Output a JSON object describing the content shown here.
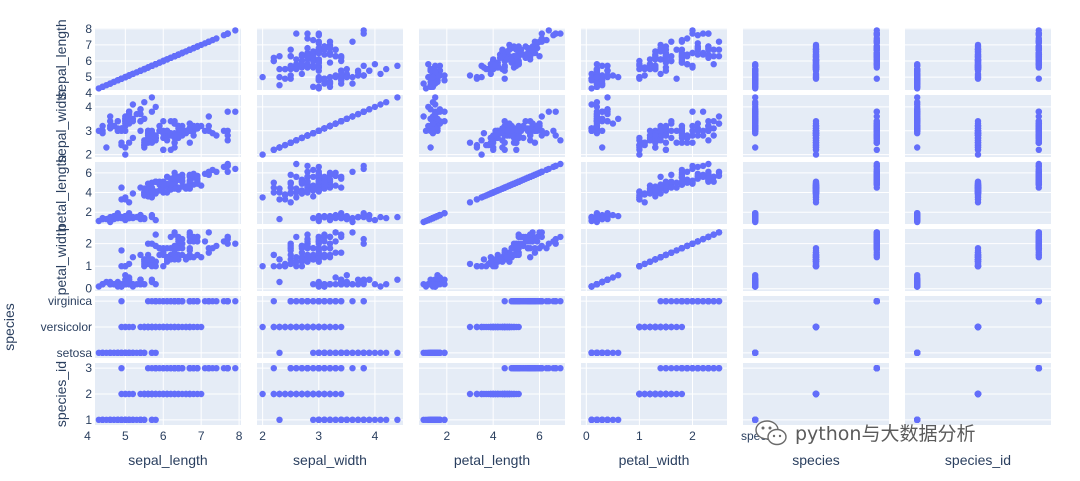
{
  "chart_data": {
    "type": "scatter",
    "subtype": "scatter-matrix",
    "title": "",
    "dimensions": [
      "sepal_length",
      "sepal_width",
      "petal_length",
      "petal_width",
      "species",
      "species_id"
    ],
    "axes": {
      "sepal_length": {
        "range": [
          4.2,
          8.05
        ],
        "ticks": [
          4,
          5,
          6,
          7,
          8
        ],
        "x_ticks": [
          4,
          5,
          6,
          7,
          8
        ],
        "y_ticks": [
          4,
          5,
          6,
          7,
          8
        ]
      },
      "sepal_width": {
        "range": [
          1.9,
          4.5
        ],
        "x_ticks": [
          2,
          3,
          4
        ],
        "y_ticks": [
          2,
          3,
          4
        ]
      },
      "petal_length": {
        "range": [
          0.8,
          7.1
        ],
        "x_ticks": [
          2,
          4,
          6
        ],
        "y_ticks": [
          2,
          4,
          6
        ]
      },
      "petal_width": {
        "range": [
          -0.1,
          2.65
        ],
        "x_ticks": [
          0,
          1,
          2
        ],
        "y_ticks": [
          0,
          1,
          2
        ]
      },
      "species": {
        "categorical": true,
        "categories": [
          "setosa",
          "versicolor",
          "virginica"
        ],
        "range": [
          -0.2,
          2.2
        ],
        "y_ticks": [
          "virginica",
          "versicolor",
          "setosa"
        ]
      },
      "species_id": {
        "range": [
          0.8,
          3.2
        ],
        "y_ticks": [
          1,
          2,
          3
        ]
      }
    },
    "marker_color": "#636efa",
    "plot_bgcolor": "#e5ecf6",
    "grid": true,
    "legend": "none",
    "source_sample_rows": [
      [
        5.1,
        3.5,
        1.4,
        0.2,
        "setosa",
        1
      ],
      [
        4.9,
        3.0,
        1.4,
        0.2,
        "setosa",
        1
      ],
      [
        4.7,
        3.2,
        1.3,
        0.2,
        "setosa",
        1
      ],
      [
        4.6,
        3.1,
        1.5,
        0.2,
        "setosa",
        1
      ],
      [
        5.0,
        3.6,
        1.4,
        0.2,
        "setosa",
        1
      ],
      [
        5.4,
        3.9,
        1.7,
        0.4,
        "setosa",
        1
      ],
      [
        4.6,
        3.4,
        1.4,
        0.3,
        "setosa",
        1
      ],
      [
        5.0,
        3.4,
        1.5,
        0.2,
        "setosa",
        1
      ],
      [
        4.4,
        2.9,
        1.4,
        0.2,
        "setosa",
        1
      ],
      [
        4.9,
        3.1,
        1.5,
        0.1,
        "setosa",
        1
      ],
      [
        5.4,
        3.7,
        1.5,
        0.2,
        "setosa",
        1
      ],
      [
        4.8,
        3.4,
        1.6,
        0.2,
        "setosa",
        1
      ],
      [
        4.8,
        3.0,
        1.4,
        0.1,
        "setosa",
        1
      ],
      [
        4.3,
        3.0,
        1.1,
        0.1,
        "setosa",
        1
      ],
      [
        5.8,
        4.0,
        1.2,
        0.2,
        "setosa",
        1
      ],
      [
        5.7,
        4.4,
        1.5,
        0.4,
        "setosa",
        1
      ],
      [
        5.4,
        3.9,
        1.3,
        0.4,
        "setosa",
        1
      ],
      [
        5.1,
        3.5,
        1.4,
        0.3,
        "setosa",
        1
      ],
      [
        5.7,
        3.8,
        1.7,
        0.3,
        "setosa",
        1
      ],
      [
        5.1,
        3.8,
        1.5,
        0.3,
        "setosa",
        1
      ],
      [
        5.4,
        3.4,
        1.7,
        0.2,
        "setosa",
        1
      ],
      [
        5.1,
        3.7,
        1.5,
        0.4,
        "setosa",
        1
      ],
      [
        4.6,
        3.6,
        1.0,
        0.2,
        "setosa",
        1
      ],
      [
        5.1,
        3.3,
        1.7,
        0.5,
        "setosa",
        1
      ],
      [
        4.8,
        3.4,
        1.9,
        0.2,
        "setosa",
        1
      ],
      [
        5.0,
        3.0,
        1.6,
        0.2,
        "setosa",
        1
      ],
      [
        5.0,
        3.4,
        1.6,
        0.4,
        "setosa",
        1
      ],
      [
        5.2,
        3.5,
        1.5,
        0.2,
        "setosa",
        1
      ],
      [
        5.2,
        3.4,
        1.4,
        0.2,
        "setosa",
        1
      ],
      [
        4.7,
        3.2,
        1.6,
        0.2,
        "setosa",
        1
      ],
      [
        4.8,
        3.1,
        1.6,
        0.2,
        "setosa",
        1
      ],
      [
        5.4,
        3.4,
        1.5,
        0.4,
        "setosa",
        1
      ],
      [
        5.2,
        4.1,
        1.5,
        0.1,
        "setosa",
        1
      ],
      [
        5.5,
        4.2,
        1.4,
        0.2,
        "setosa",
        1
      ],
      [
        4.9,
        3.1,
        1.5,
        0.1,
        "setosa",
        1
      ],
      [
        5.0,
        3.2,
        1.2,
        0.2,
        "setosa",
        1
      ],
      [
        5.5,
        3.5,
        1.3,
        0.2,
        "setosa",
        1
      ],
      [
        4.9,
        3.1,
        1.5,
        0.1,
        "setosa",
        1
      ],
      [
        4.4,
        3.0,
        1.3,
        0.2,
        "setosa",
        1
      ],
      [
        5.1,
        3.4,
        1.5,
        0.2,
        "setosa",
        1
      ],
      [
        5.0,
        3.5,
        1.3,
        0.3,
        "setosa",
        1
      ],
      [
        4.5,
        2.3,
        1.3,
        0.3,
        "setosa",
        1
      ],
      [
        4.4,
        3.2,
        1.3,
        0.2,
        "setosa",
        1
      ],
      [
        5.0,
        3.5,
        1.6,
        0.6,
        "setosa",
        1
      ],
      [
        5.1,
        3.8,
        1.9,
        0.4,
        "setosa",
        1
      ],
      [
        4.8,
        3.0,
        1.4,
        0.3,
        "setosa",
        1
      ],
      [
        5.1,
        3.8,
        1.6,
        0.2,
        "setosa",
        1
      ],
      [
        4.6,
        3.2,
        1.4,
        0.2,
        "setosa",
        1
      ],
      [
        5.3,
        3.7,
        1.5,
        0.2,
        "setosa",
        1
      ],
      [
        5.0,
        3.3,
        1.4,
        0.2,
        "setosa",
        1
      ],
      [
        7.0,
        3.2,
        4.7,
        1.4,
        "versicolor",
        2
      ],
      [
        6.4,
        3.2,
        4.5,
        1.5,
        "versicolor",
        2
      ],
      [
        6.9,
        3.1,
        4.9,
        1.5,
        "versicolor",
        2
      ],
      [
        5.5,
        2.3,
        4.0,
        1.3,
        "versicolor",
        2
      ],
      [
        6.5,
        2.8,
        4.6,
        1.5,
        "versicolor",
        2
      ],
      [
        5.7,
        2.8,
        4.5,
        1.3,
        "versicolor",
        2
      ],
      [
        6.3,
        3.3,
        4.7,
        1.6,
        "versicolor",
        2
      ],
      [
        4.9,
        2.4,
        3.3,
        1.0,
        "versicolor",
        2
      ],
      [
        6.6,
        2.9,
        4.6,
        1.3,
        "versicolor",
        2
      ],
      [
        5.2,
        2.7,
        3.9,
        1.4,
        "versicolor",
        2
      ],
      [
        5.0,
        2.0,
        3.5,
        1.0,
        "versicolor",
        2
      ],
      [
        5.9,
        3.0,
        4.2,
        1.5,
        "versicolor",
        2
      ],
      [
        6.0,
        2.2,
        4.0,
        1.0,
        "versicolor",
        2
      ],
      [
        6.1,
        2.9,
        4.7,
        1.4,
        "versicolor",
        2
      ],
      [
        5.6,
        2.9,
        3.6,
        1.3,
        "versicolor",
        2
      ],
      [
        6.7,
        3.1,
        4.4,
        1.4,
        "versicolor",
        2
      ],
      [
        5.6,
        3.0,
        4.5,
        1.5,
        "versicolor",
        2
      ],
      [
        5.8,
        2.7,
        4.1,
        1.0,
        "versicolor",
        2
      ],
      [
        6.2,
        2.2,
        4.5,
        1.5,
        "versicolor",
        2
      ],
      [
        5.6,
        2.5,
        3.9,
        1.1,
        "versicolor",
        2
      ],
      [
        5.9,
        3.2,
        4.8,
        1.8,
        "versicolor",
        2
      ],
      [
        6.1,
        2.8,
        4.0,
        1.3,
        "versicolor",
        2
      ],
      [
        6.3,
        2.5,
        4.9,
        1.5,
        "versicolor",
        2
      ],
      [
        6.1,
        2.8,
        4.7,
        1.2,
        "versicolor",
        2
      ],
      [
        6.4,
        2.9,
        4.3,
        1.3,
        "versicolor",
        2
      ],
      [
        6.6,
        3.0,
        4.4,
        1.4,
        "versicolor",
        2
      ],
      [
        6.8,
        2.8,
        4.8,
        1.4,
        "versicolor",
        2
      ],
      [
        6.7,
        3.0,
        5.0,
        1.7,
        "versicolor",
        2
      ],
      [
        6.0,
        2.9,
        4.5,
        1.5,
        "versicolor",
        2
      ],
      [
        5.7,
        2.6,
        3.5,
        1.0,
        "versicolor",
        2
      ],
      [
        5.5,
        2.4,
        3.8,
        1.1,
        "versicolor",
        2
      ],
      [
        5.5,
        2.4,
        3.7,
        1.0,
        "versicolor",
        2
      ],
      [
        5.8,
        2.7,
        3.9,
        1.2,
        "versicolor",
        2
      ],
      [
        6.0,
        2.7,
        5.1,
        1.6,
        "versicolor",
        2
      ],
      [
        5.4,
        3.0,
        4.5,
        1.5,
        "versicolor",
        2
      ],
      [
        6.0,
        3.4,
        4.5,
        1.6,
        "versicolor",
        2
      ],
      [
        6.7,
        3.1,
        4.7,
        1.5,
        "versicolor",
        2
      ],
      [
        6.3,
        2.3,
        4.4,
        1.3,
        "versicolor",
        2
      ],
      [
        5.6,
        3.0,
        4.1,
        1.3,
        "versicolor",
        2
      ],
      [
        5.5,
        2.5,
        4.0,
        1.3,
        "versicolor",
        2
      ],
      [
        5.5,
        2.6,
        4.4,
        1.2,
        "versicolor",
        2
      ],
      [
        6.1,
        3.0,
        4.6,
        1.4,
        "versicolor",
        2
      ],
      [
        5.8,
        2.6,
        4.0,
        1.2,
        "versicolor",
        2
      ],
      [
        5.0,
        2.3,
        3.3,
        1.0,
        "versicolor",
        2
      ],
      [
        5.6,
        2.7,
        4.2,
        1.3,
        "versicolor",
        2
      ],
      [
        5.7,
        3.0,
        4.2,
        1.2,
        "versicolor",
        2
      ],
      [
        5.7,
        2.9,
        4.2,
        1.3,
        "versicolor",
        2
      ],
      [
        6.2,
        2.9,
        4.3,
        1.3,
        "versicolor",
        2
      ],
      [
        5.1,
        2.5,
        3.0,
        1.1,
        "versicolor",
        2
      ],
      [
        5.7,
        2.8,
        4.1,
        1.3,
        "versicolor",
        2
      ],
      [
        6.3,
        3.3,
        6.0,
        2.5,
        "virginica",
        3
      ],
      [
        5.8,
        2.7,
        5.1,
        1.9,
        "virginica",
        3
      ],
      [
        7.1,
        3.0,
        5.9,
        2.1,
        "virginica",
        3
      ],
      [
        6.3,
        2.9,
        5.6,
        1.8,
        "virginica",
        3
      ],
      [
        6.5,
        3.0,
        5.8,
        2.2,
        "virginica",
        3
      ],
      [
        7.6,
        3.0,
        6.6,
        2.1,
        "virginica",
        3
      ],
      [
        4.9,
        2.5,
        4.5,
        1.7,
        "virginica",
        3
      ],
      [
        7.3,
        2.9,
        6.3,
        1.8,
        "virginica",
        3
      ],
      [
        6.7,
        2.5,
        5.8,
        1.8,
        "virginica",
        3
      ],
      [
        7.2,
        3.6,
        6.1,
        2.5,
        "virginica",
        3
      ],
      [
        6.5,
        3.2,
        5.1,
        2.0,
        "virginica",
        3
      ],
      [
        6.4,
        2.7,
        5.3,
        1.9,
        "virginica",
        3
      ],
      [
        6.8,
        3.0,
        5.5,
        2.1,
        "virginica",
        3
      ],
      [
        5.7,
        2.5,
        5.0,
        2.0,
        "virginica",
        3
      ],
      [
        5.8,
        2.8,
        5.1,
        2.4,
        "virginica",
        3
      ],
      [
        6.4,
        3.2,
        5.3,
        2.3,
        "virginica",
        3
      ],
      [
        6.5,
        3.0,
        5.5,
        1.8,
        "virginica",
        3
      ],
      [
        7.7,
        3.8,
        6.7,
        2.2,
        "virginica",
        3
      ],
      [
        7.7,
        2.6,
        6.9,
        2.3,
        "virginica",
        3
      ],
      [
        6.0,
        2.2,
        5.0,
        1.5,
        "virginica",
        3
      ],
      [
        6.9,
        3.2,
        5.7,
        2.3,
        "virginica",
        3
      ],
      [
        5.6,
        2.8,
        4.9,
        2.0,
        "virginica",
        3
      ],
      [
        7.7,
        2.8,
        6.7,
        2.0,
        "virginica",
        3
      ],
      [
        6.3,
        2.7,
        4.9,
        1.8,
        "virginica",
        3
      ],
      [
        6.7,
        3.3,
        5.7,
        2.1,
        "virginica",
        3
      ],
      [
        7.2,
        3.2,
        6.0,
        1.8,
        "virginica",
        3
      ],
      [
        6.2,
        2.8,
        4.8,
        1.8,
        "virginica",
        3
      ],
      [
        6.1,
        3.0,
        4.9,
        1.8,
        "virginica",
        3
      ],
      [
        6.4,
        2.8,
        5.6,
        2.1,
        "virginica",
        3
      ],
      [
        7.2,
        3.0,
        5.8,
        1.6,
        "virginica",
        3
      ],
      [
        7.4,
        2.8,
        6.1,
        1.9,
        "virginica",
        3
      ],
      [
        7.9,
        3.8,
        6.4,
        2.0,
        "virginica",
        3
      ],
      [
        6.4,
        2.8,
        5.6,
        2.2,
        "virginica",
        3
      ],
      [
        6.3,
        2.8,
        5.1,
        1.5,
        "virginica",
        3
      ],
      [
        6.1,
        2.6,
        5.6,
        1.4,
        "virginica",
        3
      ],
      [
        7.7,
        3.0,
        6.1,
        2.3,
        "virginica",
        3
      ],
      [
        6.3,
        3.4,
        5.6,
        2.4,
        "virginica",
        3
      ],
      [
        6.4,
        3.1,
        5.5,
        1.8,
        "virginica",
        3
      ],
      [
        6.0,
        3.0,
        4.8,
        1.8,
        "virginica",
        3
      ],
      [
        6.9,
        3.1,
        5.4,
        2.1,
        "virginica",
        3
      ],
      [
        6.7,
        3.1,
        5.6,
        2.4,
        "virginica",
        3
      ],
      [
        6.9,
        3.1,
        5.1,
        2.3,
        "virginica",
        3
      ],
      [
        5.8,
        2.7,
        5.1,
        1.9,
        "virginica",
        3
      ],
      [
        6.8,
        3.2,
        5.9,
        2.3,
        "virginica",
        3
      ],
      [
        6.7,
        3.3,
        5.7,
        2.5,
        "virginica",
        3
      ],
      [
        6.7,
        3.0,
        5.2,
        2.3,
        "virginica",
        3
      ],
      [
        6.3,
        2.5,
        5.0,
        1.9,
        "virginica",
        3
      ],
      [
        6.5,
        3.0,
        5.2,
        2.0,
        "virginica",
        3
      ],
      [
        6.2,
        3.4,
        5.4,
        2.3,
        "virginica",
        3
      ],
      [
        5.9,
        3.0,
        5.1,
        1.8,
        "virginica",
        3
      ]
    ]
  },
  "watermark": {
    "text": "python与大数据分析",
    "icon": "wechat-icon",
    "partial_label_text": "species"
  }
}
